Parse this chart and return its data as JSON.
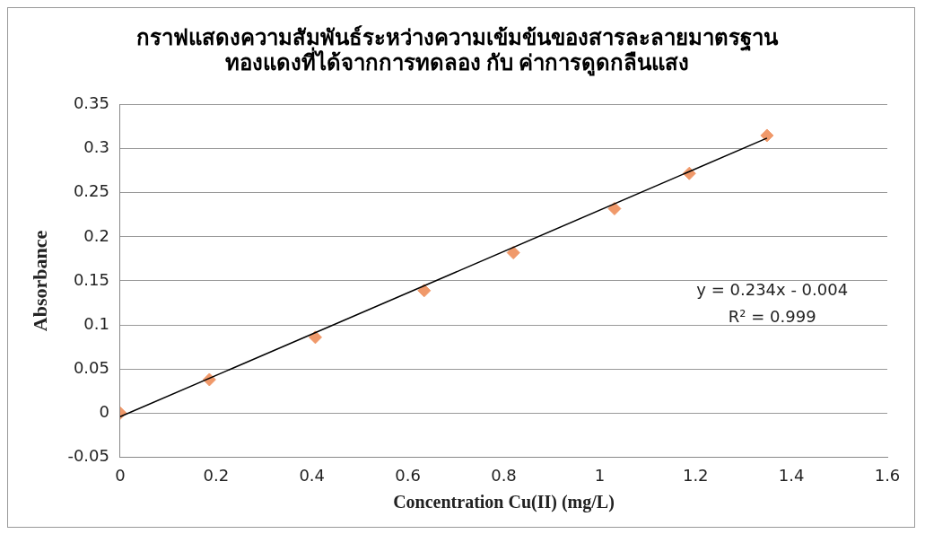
{
  "chart_data": {
    "type": "scatter",
    "title": "กราฟแสดงความสัมพันธ์ระหว่างความเข้มข้นของสารละลายมาตรฐาน\nทองแดงที่ได้จากการทดลอง กับ ค่าการดูดกลืนแสง",
    "xlabel": "Concentration Cu(II) (mg/L)",
    "ylabel": "Absorbance",
    "xlim": [
      0,
      1.6
    ],
    "xticks": [
      0,
      0.2,
      0.4,
      0.6,
      0.8,
      1,
      1.2,
      1.4,
      1.6
    ],
    "ylim": [
      -0.05,
      0.35
    ],
    "yticks": [
      -0.05,
      0,
      0.05,
      0.1,
      0.15,
      0.2,
      0.25,
      0.3,
      0.35
    ],
    "grid": "y",
    "legend": false,
    "series": [
      {
        "type": "scatter",
        "color": "#f0996a",
        "marker": "diamond",
        "x": [
          0,
          0.186,
          0.407,
          0.634,
          0.82,
          1.031,
          1.187,
          1.349
        ],
        "values": [
          0,
          0.038,
          0.086,
          0.139,
          0.182,
          0.232,
          0.272,
          0.315
        ]
      },
      {
        "type": "line",
        "color": "#000000",
        "marker": "none",
        "line_style": "solid",
        "x": [
          0,
          1.349
        ],
        "values": [
          -0.004,
          0.312
        ]
      }
    ],
    "annotations": [
      "y = 0.234x - 0.004",
      "R² = 0.999"
    ]
  }
}
